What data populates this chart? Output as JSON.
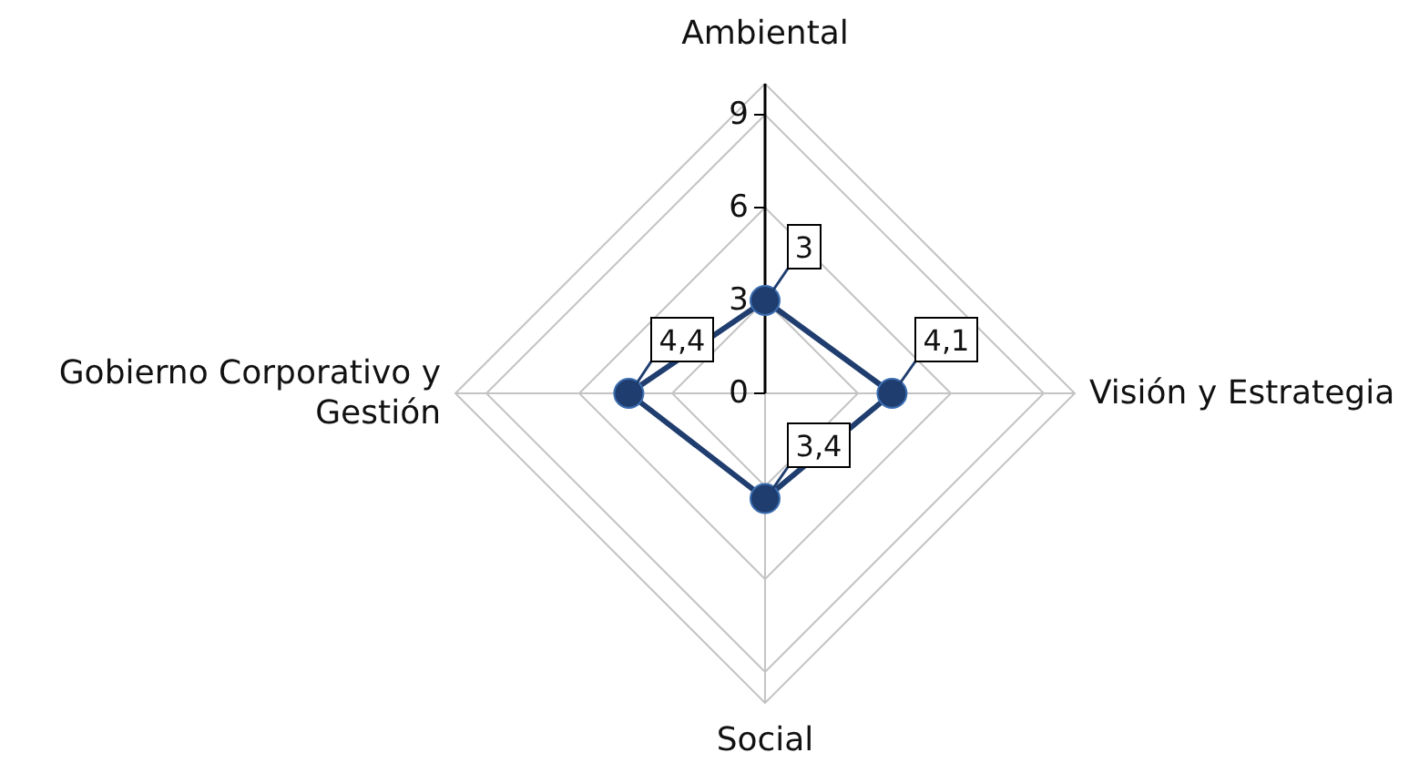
{
  "chart_data": {
    "type": "radar",
    "categories": [
      "Ambiental",
      "Visión y Estrategia",
      "Social",
      "Gobierno Corporativo y Gestión"
    ],
    "series": [
      {
        "color": "#1f3d6e",
        "values": [
          3,
          4.1,
          3.4,
          4.4
        ],
        "value_labels": [
          "3",
          "4,1",
          "3,4",
          "4,4"
        ]
      }
    ],
    "ylim": [
      0,
      10
    ],
    "yticks": [
      0,
      3,
      6,
      9
    ],
    "grid": true,
    "marker": "circle",
    "line_style": "solid"
  }
}
